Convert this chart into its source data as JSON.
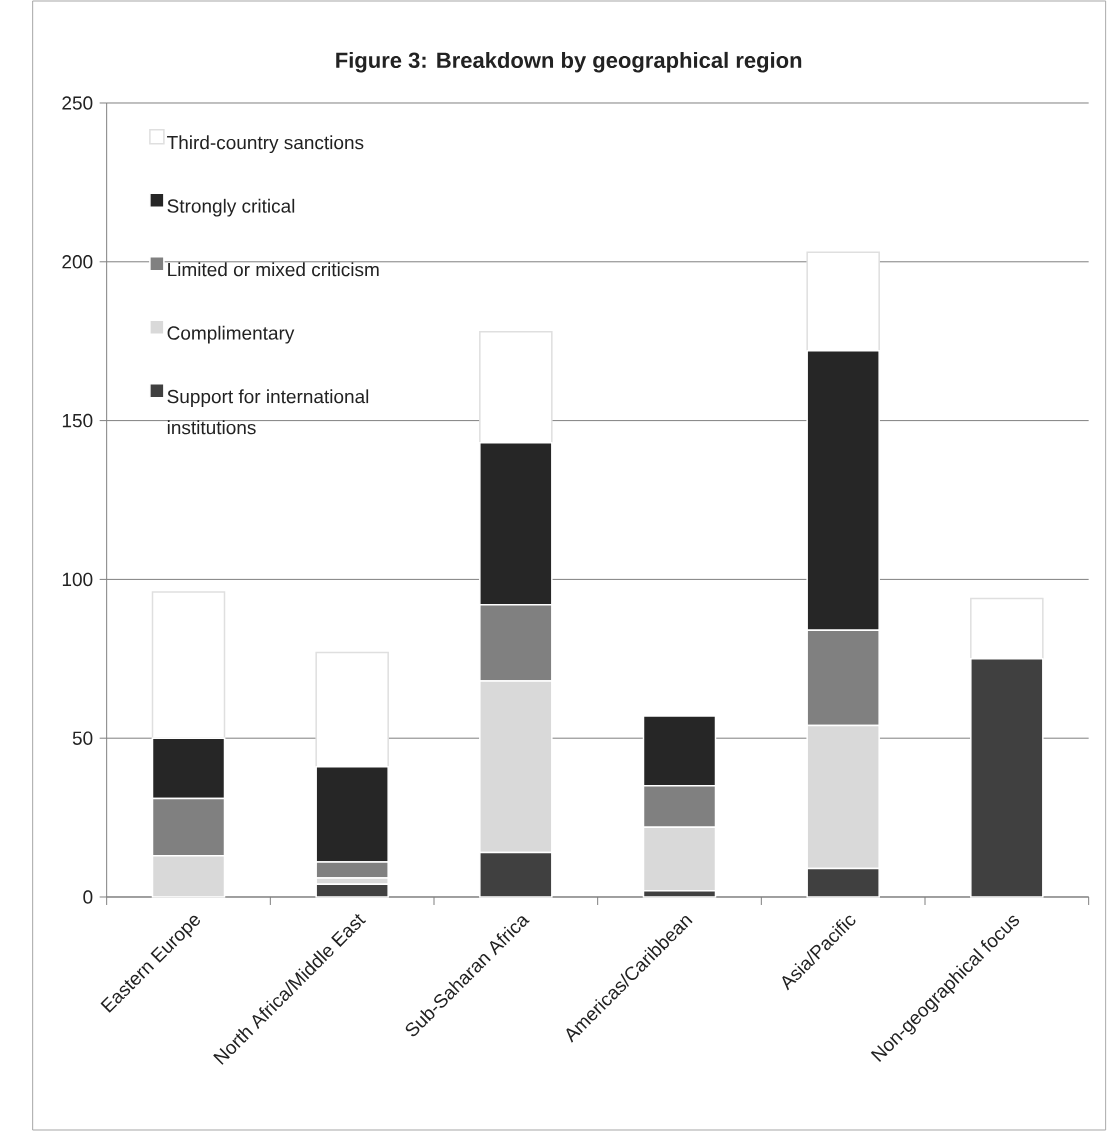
{
  "chart_data": {
    "type": "bar",
    "title": "Figure 3:  Breakdown by geographical region",
    "categories": [
      "Eastern Europe",
      "North Africa/Middle East",
      "Sub-Saharan Africa",
      "Americas/Caribbean",
      "Asia/Pacific",
      "Non-geographical focus"
    ],
    "stacked": true,
    "series": [
      {
        "name": "Support for international institutions",
        "color": "#404040",
        "values": [
          0,
          4,
          14,
          2,
          9,
          75
        ]
      },
      {
        "name": "Complimentary",
        "color": "#d9d9d9",
        "values": [
          13,
          2,
          54,
          20,
          45,
          0
        ]
      },
      {
        "name": "Limited or mixed criticism",
        "color": "#808080",
        "values": [
          18,
          5,
          24,
          13,
          30,
          0
        ]
      },
      {
        "name": "Strongly critical",
        "color": "#262626",
        "values": [
          19,
          30,
          51,
          22,
          88,
          0
        ]
      },
      {
        "name": "Third-country sanctions",
        "color": "#ffffff",
        "values": [
          46,
          36,
          35,
          0,
          31,
          19
        ]
      }
    ],
    "ylim": [
      0,
      250
    ],
    "yticks": [
      0,
      50,
      100,
      150,
      200,
      250
    ],
    "grid": "y",
    "legend": "top left"
  }
}
